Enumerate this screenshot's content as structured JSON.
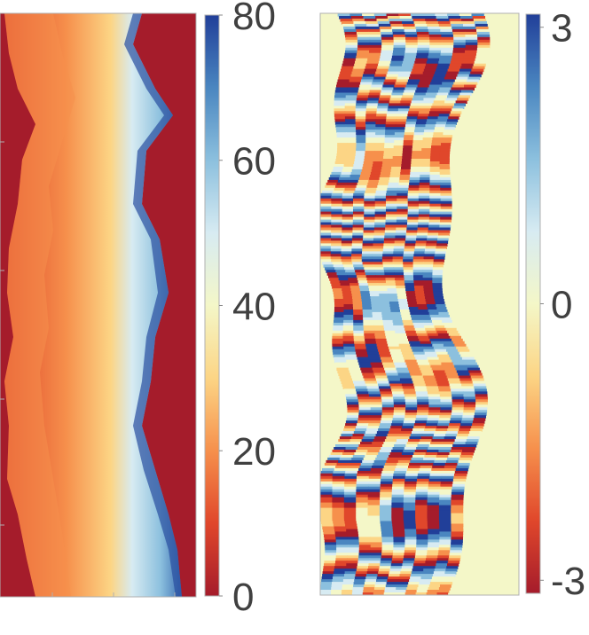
{
  "chart_data": [
    {
      "type": "heatmap",
      "title": "",
      "xlabel": "",
      "ylabel": "",
      "description_values": "unwrapped field with increasing values toward center-right band",
      "colorbar": {
        "min": 0,
        "max": 80,
        "ticks": [
          {
            "value": 0,
            "label": "0"
          },
          {
            "value": 20,
            "label": "20"
          },
          {
            "value": 40,
            "label": "40"
          },
          {
            "value": 60,
            "label": "60"
          },
          {
            "value": 80,
            "label": "80"
          }
        ]
      },
      "background_value": 0,
      "colormap": [
        "#a51c2b",
        "#e0472b",
        "#f6904c",
        "#fcd585",
        "#f4f7c8",
        "#d7ebf2",
        "#8cc0de",
        "#4a86c0",
        "#213f99"
      ]
    },
    {
      "type": "heatmap",
      "title": "",
      "xlabel": "",
      "ylabel": "",
      "colorbar": {
        "min": -3.14159,
        "max": 3.14159,
        "ticks": [
          {
            "value": 3,
            "label": "3"
          },
          {
            "value": 0,
            "label": "0"
          },
          {
            "value": -3,
            "label": "-3"
          }
        ]
      },
      "background_value": 0,
      "colormap": [
        "#a51c2b",
        "#e0472b",
        "#f6904c",
        "#fcd585",
        "#f4f7c8",
        "#d7ebf2",
        "#8cc0de",
        "#4a86c0",
        "#213f99"
      ]
    }
  ]
}
